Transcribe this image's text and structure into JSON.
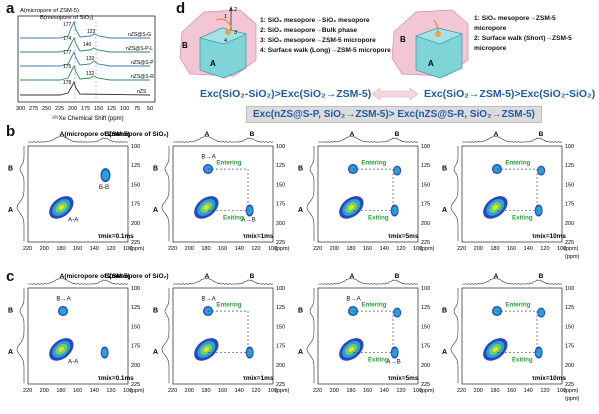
{
  "panel_labels": {
    "a": "a",
    "b": "b",
    "c": "c",
    "d": "d"
  },
  "panel_a": {
    "legend_a": "A(micropore of ZSM-5)",
    "legend_b": "B(mesopore of SiO₂)",
    "xlabel": "¹²⁹Xe Chemical Shift (ppm)",
    "x_ticks": [
      "300",
      "275",
      "250",
      "225",
      "200",
      "175",
      "150",
      "125",
      "100",
      "75",
      "50"
    ],
    "traces": [
      {
        "name": "nZS@S-G",
        "peak_a": "177",
        "peak_b": "123"
      },
      {
        "name": "nZS@S-P-L",
        "peak_a": "174",
        "peak_b": "140"
      },
      {
        "name": "nZS@S-P",
        "peak_a": "177",
        "peak_b": "133"
      },
      {
        "name": "nZS@S-R",
        "peak_a": "175",
        "peak_b": "132"
      },
      {
        "name": "nZS",
        "peak_a": "178",
        "peak_b": ""
      }
    ]
  },
  "panel_d": {
    "left_paths": [
      "1: SiO₂ mesopore→SiO₂ mesopore",
      "2: SiO₂ mesopore→Bulk phase",
      "3: SiO₂ mesopore→ZSM-5 micropore",
      "4: Surface walk (Long)→ZSM-5 micropore"
    ],
    "right_paths": [
      "1: SiO₂ mesopore→ZSM-5",
      "micropore",
      "2: Surface walk (Short)→ZSM-5",
      "micropore"
    ],
    "eq_left": "Exc(SiO₂-SiO₂)>Exc(SiO₂→ZSM-5)",
    "eq_right": "Exc(SiO₂→ZSM-5)>Exc(SiO₂-SiO₂)",
    "eq_bottom": "Exc(nZS@S-P, SiO₂→ZSM-5)> Exc(nZS@S-R, SiO₂→ZSM-5)",
    "cube_labels": {
      "a": "A",
      "b": "B",
      "num1": "1",
      "num2": "2",
      "num3": "3",
      "num4": "4"
    }
  },
  "spectra": {
    "x_ticks": [
      "220",
      "200",
      "180",
      "160",
      "140",
      "120",
      "100"
    ],
    "y_ticks": [
      "100",
      "125",
      "150",
      "175",
      "200",
      "225"
    ],
    "unit": "(ppm)",
    "axis_a": "A",
    "axis_b": "B",
    "top_legend_a": "A(micropore of ZSM-5)",
    "top_legend_b": "B(mesopore of SiO₂)",
    "top_a": "A",
    "top_b": "B",
    "row_b": [
      {
        "mix": "τmix=0.1ms",
        "labels": {
          "aa": "A-A",
          "bb": "B-B"
        }
      },
      {
        "mix": "τmix=1ms",
        "labels": {
          "ba": "B→A",
          "ab": "A→B",
          "entering": "Entering",
          "exiting": "Exiting"
        }
      },
      {
        "mix": "τmix=5ms",
        "labels": {
          "entering": "Entering",
          "exiting": "Exiting"
        }
      },
      {
        "mix": "τmix=10ms",
        "labels": {
          "entering": "Entering",
          "exiting": "Exiting"
        }
      }
    ],
    "row_c": [
      {
        "mix": "τmix=0.1ms",
        "labels": {
          "ba": "B→A",
          "aa": "A-A"
        }
      },
      {
        "mix": "τmix=1ms",
        "labels": {
          "ba": "B→A",
          "entering": "Entering"
        }
      },
      {
        "mix": "τmix=5ms",
        "labels": {
          "ba": "B→A",
          "ab": "A→B",
          "entering": "Entering",
          "exiting": "Exiting"
        }
      },
      {
        "mix": "τmix=10ms",
        "labels": {
          "entering": "Entering",
          "exiting": "Exiting"
        }
      }
    ]
  },
  "colors": {
    "contour_outer": "#1d3cc2",
    "contour_mid": "#27a7d8",
    "contour_inner": "#7fd24a",
    "contour_core": "#e9e23a",
    "green_text": "#2e9a3a",
    "blue_text": "#1f5aa6"
  }
}
